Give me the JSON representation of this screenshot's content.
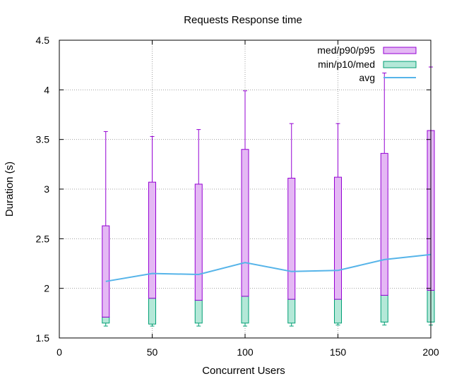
{
  "chart_data": {
    "type": "boxplot",
    "title": "Requests Response time",
    "xlabel": "Concurrent Users",
    "ylabel": "Duration (s)",
    "xlim": [
      0,
      200
    ],
    "ylim": [
      1.5,
      4.5
    ],
    "xticks": [
      0,
      50,
      100,
      150,
      200
    ],
    "yticks": [
      1.5,
      2,
      2.5,
      3,
      3.5,
      4,
      4.5
    ],
    "grid": true,
    "legend_position": "top-right",
    "legend": [
      {
        "label": "med/p90/p95",
        "kind": "box",
        "fill": "#e4b8f4",
        "stroke": "#9400d3"
      },
      {
        "label": "min/p10/med",
        "kind": "box",
        "fill": "#b4e8d8",
        "stroke": "#009e73"
      },
      {
        "label": "avg",
        "kind": "line",
        "stroke": "#56b4e9"
      }
    ],
    "series": [
      {
        "users": 25,
        "min": 1.62,
        "p10": 1.65,
        "med": 1.71,
        "p90": 2.63,
        "p95": 3.58,
        "avg": 2.07
      },
      {
        "users": 50,
        "min": 1.62,
        "p10": 1.64,
        "med": 1.9,
        "p90": 3.07,
        "p95": 3.53,
        "avg": 2.15
      },
      {
        "users": 75,
        "min": 1.62,
        "p10": 1.65,
        "med": 1.88,
        "p90": 3.05,
        "p95": 3.6,
        "avg": 2.14
      },
      {
        "users": 100,
        "min": 1.62,
        "p10": 1.65,
        "med": 1.92,
        "p90": 3.4,
        "p95": 3.99,
        "avg": 2.26
      },
      {
        "users": 125,
        "min": 1.62,
        "p10": 1.65,
        "med": 1.89,
        "p90": 3.11,
        "p95": 3.66,
        "avg": 2.17
      },
      {
        "users": 150,
        "min": 1.63,
        "p10": 1.65,
        "med": 1.89,
        "p90": 3.12,
        "p95": 3.66,
        "avg": 2.18
      },
      {
        "users": 175,
        "min": 1.63,
        "p10": 1.66,
        "med": 1.93,
        "p90": 3.36,
        "p95": 4.17,
        "avg": 2.29
      },
      {
        "users": 200,
        "min": 1.63,
        "p10": 1.66,
        "med": 1.98,
        "p90": 3.59,
        "p95": 4.23,
        "avg": 2.34
      }
    ]
  }
}
